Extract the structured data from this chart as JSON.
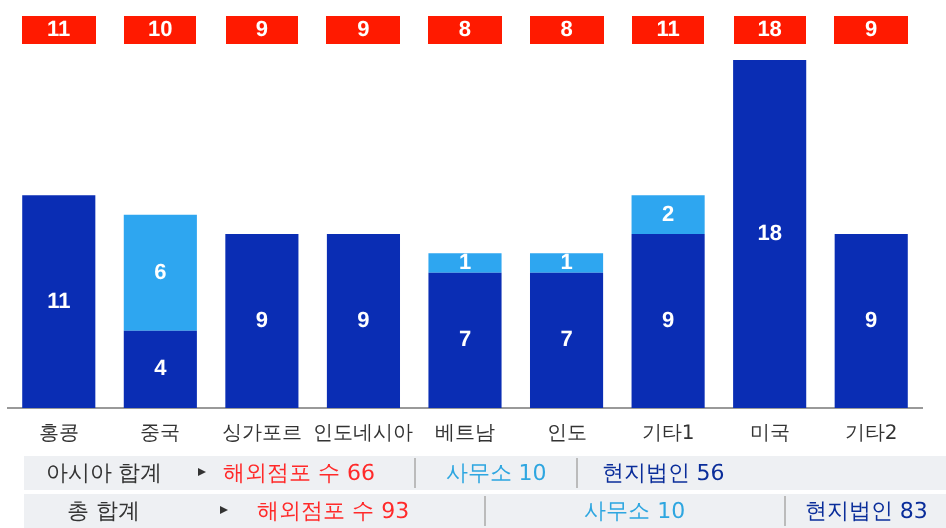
{
  "chart_data": {
    "type": "bar",
    "stacked": true,
    "data_labels": true,
    "grid": false,
    "legend": false,
    "categories": [
      "홍콩",
      "중국",
      "싱가포르",
      "인도네시아",
      "베트남",
      "인도",
      "기타1",
      "미국",
      "기타2"
    ],
    "series": [
      {
        "color": "#0a2db4",
        "values": [
          11,
          4,
          9,
          9,
          7,
          7,
          9,
          18,
          9
        ]
      },
      {
        "color": "#2ea6f0",
        "values": [
          null,
          6,
          null,
          null,
          1,
          1,
          2,
          null,
          null
        ]
      }
    ],
    "annotations": [
      "11",
      "10",
      "9",
      "9",
      "8",
      "8",
      "11",
      "18",
      "9",
      "아시아 합계",
      "해외점포 수 66",
      "사무소 10",
      "현지법인 56",
      "총 합계",
      "해외점포 수 93",
      "사무소 10",
      "현지법인 83"
    ]
  }
}
